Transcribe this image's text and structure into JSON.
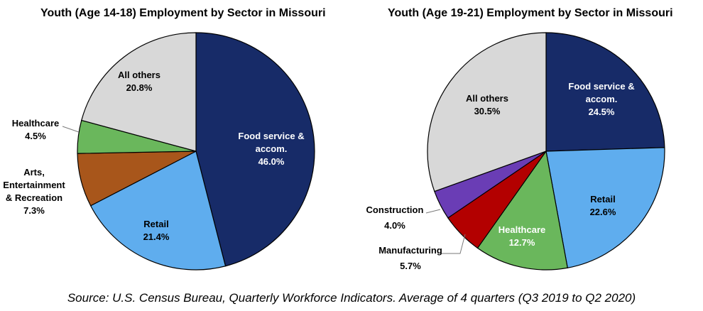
{
  "colors": {
    "food": "#172B68",
    "retail": "#5FADEE",
    "arts": "#A8561B",
    "healthcare": "#6AB75C",
    "others": "#D8D8D8",
    "manufacturing": "#B30000",
    "construction": "#6A3DB5",
    "slice_border": "#000000"
  },
  "chart_data": [
    {
      "type": "pie",
      "title": "Youth (Age 14-18) Employment by Sector in Missouri",
      "slices": [
        {
          "label": "Food service &\naccom.",
          "value": 46.0,
          "display": "46.0%",
          "color": "#172B68",
          "text_color": "#ffffff"
        },
        {
          "label": "Retail",
          "value": 21.4,
          "display": "21.4%",
          "color": "#5FADEE",
          "text_color": "#000000"
        },
        {
          "label": "Arts,\nEntertainment\n& Recreation",
          "value": 7.3,
          "display": "7.3%",
          "color": "#A8561B",
          "text_color": "#000000"
        },
        {
          "label": "Healthcare",
          "value": 4.5,
          "display": "4.5%",
          "color": "#6AB75C",
          "text_color": "#000000"
        },
        {
          "label": "All others",
          "value": 20.8,
          "display": "20.8%",
          "color": "#D8D8D8",
          "text_color": "#000000"
        }
      ]
    },
    {
      "type": "pie",
      "title": "Youth (Age 19-21) Employment by Sector in Missouri",
      "slices": [
        {
          "label": "Food service &\naccom.",
          "value": 24.5,
          "display": "24.5%",
          "color": "#172B68",
          "text_color": "#ffffff"
        },
        {
          "label": "Retail",
          "value": 22.6,
          "display": "22.6%",
          "color": "#5FADEE",
          "text_color": "#000000"
        },
        {
          "label": "Healthcare",
          "value": 12.7,
          "display": "12.7%",
          "color": "#6AB75C",
          "text_color": "#ffffff"
        },
        {
          "label": "Manufacturing",
          "value": 5.7,
          "display": "5.7%",
          "color": "#B30000",
          "text_color": "#000000"
        },
        {
          "label": "Construction",
          "value": 4.0,
          "display": "4.0%",
          "color": "#6A3DB5",
          "text_color": "#000000"
        },
        {
          "label": "All others",
          "value": 30.5,
          "display": "30.5%",
          "color": "#D8D8D8",
          "text_color": "#000000"
        }
      ]
    }
  ],
  "source": "Source: U.S. Census Bureau, Quarterly Workforce Indicators. Average of 4 quarters (Q3 2019 to Q2 2020)"
}
